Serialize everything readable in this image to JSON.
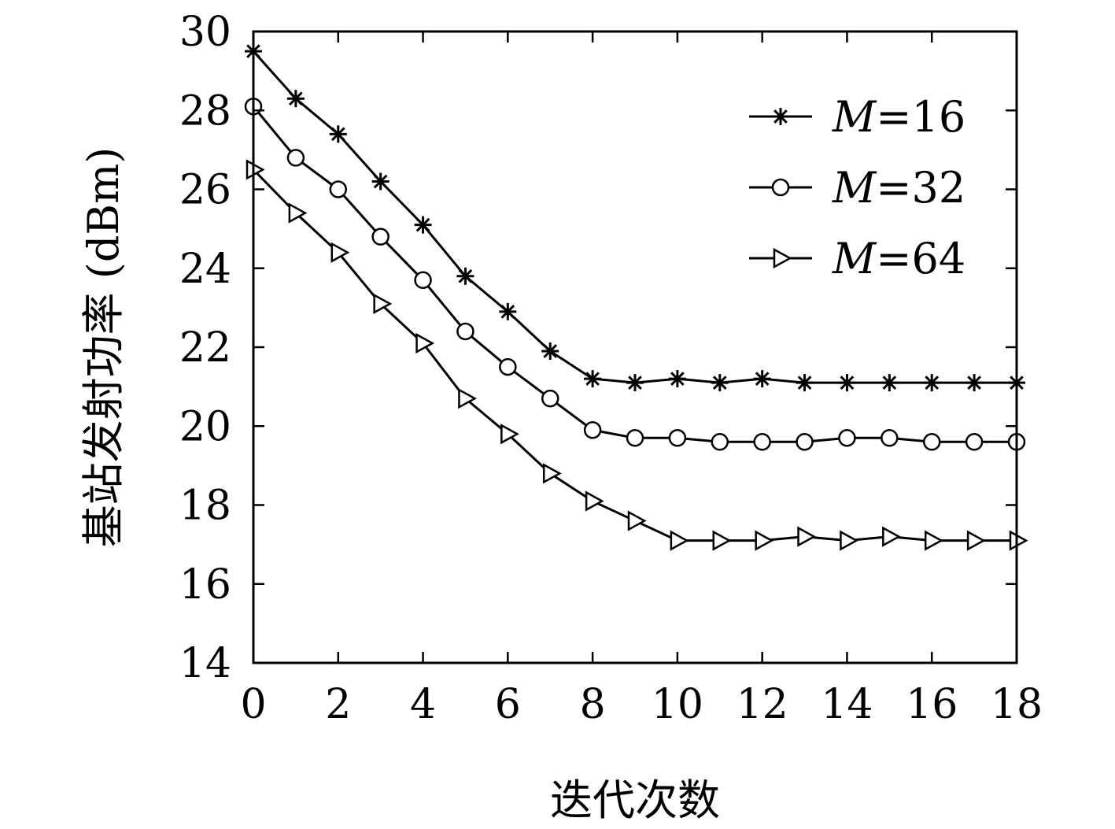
{
  "chart_data": {
    "type": "line",
    "title": "",
    "xlabel": "迭代次数",
    "ylabel": "基站发射功率 (dBm)",
    "xlim": [
      0,
      18
    ],
    "ylim": [
      14,
      30
    ],
    "xticks": [
      "0",
      "2",
      "4",
      "6",
      "8",
      "10",
      "12",
      "14",
      "16",
      "18"
    ],
    "yticks": [
      "14",
      "16",
      "18",
      "20",
      "22",
      "24",
      "26",
      "28",
      "30"
    ],
    "grid": false,
    "legend_position": "top-right",
    "x": [
      0,
      1,
      2,
      3,
      4,
      5,
      6,
      7,
      8,
      9,
      10,
      11,
      12,
      13,
      14,
      15,
      16,
      17,
      18
    ],
    "series": [
      {
        "name_prefix": "M",
        "name_suffix": "=16",
        "marker": "asterisk",
        "values": [
          29.5,
          28.3,
          27.4,
          26.2,
          25.1,
          23.8,
          22.9,
          21.9,
          21.2,
          21.1,
          21.2,
          21.1,
          21.2,
          21.1,
          21.1,
          21.1,
          21.1,
          21.1,
          21.1
        ]
      },
      {
        "name_prefix": "M",
        "name_suffix": "=32",
        "marker": "circle",
        "values": [
          28.1,
          26.8,
          26.0,
          24.8,
          23.7,
          22.4,
          21.5,
          20.7,
          19.9,
          19.7,
          19.7,
          19.6,
          19.6,
          19.6,
          19.7,
          19.7,
          19.6,
          19.6,
          19.6
        ]
      },
      {
        "name_prefix": "M",
        "name_suffix": "=64",
        "marker": "triangle-right",
        "values": [
          26.5,
          25.4,
          24.4,
          23.1,
          22.1,
          20.7,
          19.8,
          18.8,
          18.1,
          17.6,
          17.1,
          17.1,
          17.1,
          17.2,
          17.1,
          17.2,
          17.1,
          17.1,
          17.1
        ]
      }
    ]
  }
}
